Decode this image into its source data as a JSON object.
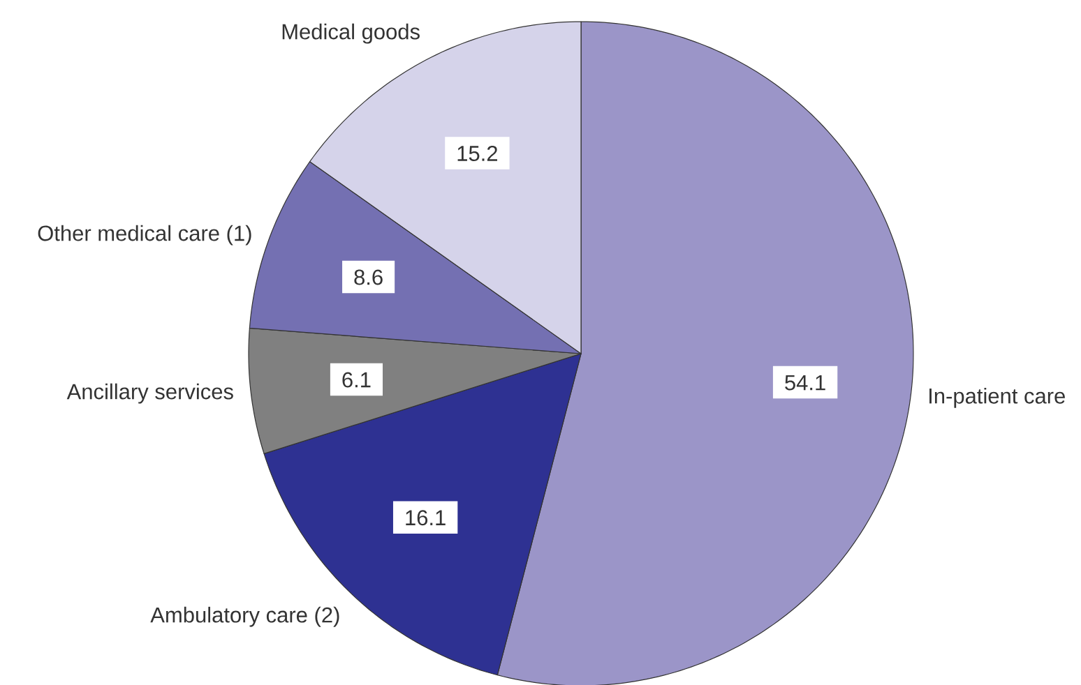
{
  "chart_data": {
    "type": "pie",
    "categories": [
      "In-patient care",
      "Ambulatory care (2)",
      "Ancillary services",
      "Other medical care (1)",
      "Medical goods"
    ],
    "values": [
      54.1,
      16.1,
      6.1,
      8.6,
      15.2
    ],
    "colors": [
      "#9b95c8",
      "#2e3192",
      "#808080",
      "#7470b2",
      "#d5d3ea"
    ],
    "data_labels": true
  }
}
